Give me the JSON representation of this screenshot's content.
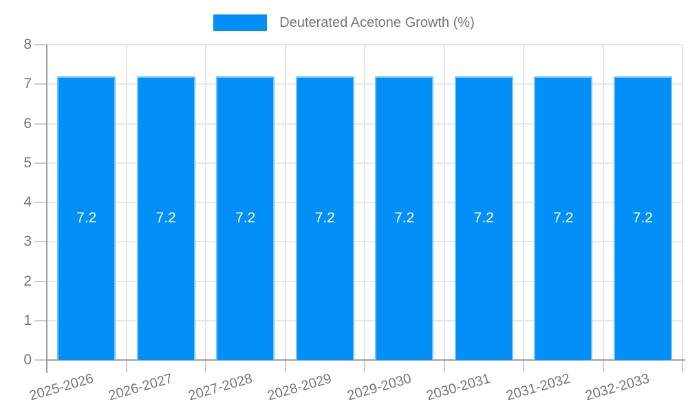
{
  "chart_data": {
    "type": "bar",
    "title": "Deuterated Acetone Growth (%)",
    "categories": [
      "2025-2026",
      "2026-2027",
      "2027-2028",
      "2028-2029",
      "2029-2030",
      "2030-2031",
      "2031-2032",
      "2032-2033"
    ],
    "series": [
      {
        "name": "Deuterated Acetone Growth (%)",
        "values": [
          7.2,
          7.2,
          7.2,
          7.2,
          7.2,
          7.2,
          7.2,
          7.2
        ]
      }
    ],
    "bar_labels": [
      "7.2",
      "7.2",
      "7.2",
      "7.2",
      "7.2",
      "7.2",
      "7.2",
      "7.2"
    ],
    "xlabel": "",
    "ylabel": "",
    "ylim": [
      0,
      8
    ],
    "yticks": [
      0,
      1,
      2,
      3,
      4,
      5,
      6,
      7,
      8
    ],
    "grid": true,
    "legend_position": "top"
  },
  "colors": {
    "bar": "#0290F8",
    "bar_value_text": "#ffffff",
    "axis_line": "#9e9e9e",
    "gridline": "#e6e6e6",
    "tick_mark": "#cccccc",
    "text": "#757575",
    "background": "#ffffff"
  }
}
